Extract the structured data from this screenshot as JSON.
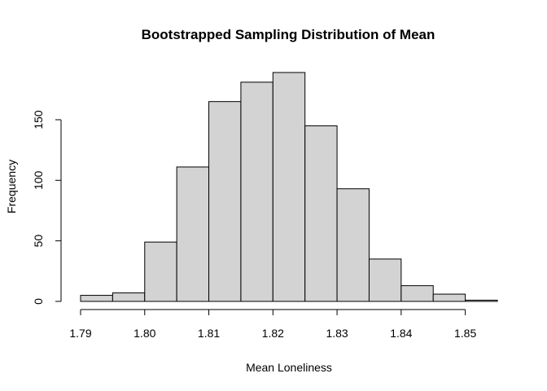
{
  "chart_data": {
    "type": "bar",
    "title": "Bootstrapped Sampling Distribution of Mean",
    "xlabel": "Mean Loneliness",
    "ylabel": "Frequency",
    "bins": [
      {
        "x0": 1.79,
        "x1": 1.795,
        "count": 5
      },
      {
        "x0": 1.795,
        "x1": 1.8,
        "count": 7
      },
      {
        "x0": 1.8,
        "x1": 1.805,
        "count": 49
      },
      {
        "x0": 1.805,
        "x1": 1.81,
        "count": 111
      },
      {
        "x0": 1.81,
        "x1": 1.815,
        "count": 165
      },
      {
        "x0": 1.815,
        "x1": 1.82,
        "count": 181
      },
      {
        "x0": 1.82,
        "x1": 1.825,
        "count": 189
      },
      {
        "x0": 1.825,
        "x1": 1.83,
        "count": 145
      },
      {
        "x0": 1.83,
        "x1": 1.835,
        "count": 93
      },
      {
        "x0": 1.835,
        "x1": 1.84,
        "count": 35
      },
      {
        "x0": 1.84,
        "x1": 1.845,
        "count": 13
      },
      {
        "x0": 1.845,
        "x1": 1.85,
        "count": 6
      },
      {
        "x0": 1.85,
        "x1": 1.855,
        "count": 1
      }
    ],
    "xticks": [
      {
        "value": 1.79,
        "label": "1.79"
      },
      {
        "value": 1.8,
        "label": "1.80"
      },
      {
        "value": 1.81,
        "label": "1.81"
      },
      {
        "value": 1.82,
        "label": "1.82"
      },
      {
        "value": 1.83,
        "label": "1.83"
      },
      {
        "value": 1.84,
        "label": "1.84"
      },
      {
        "value": 1.85,
        "label": "1.85"
      }
    ],
    "yticks": [
      {
        "value": 0,
        "label": "0"
      },
      {
        "value": 50,
        "label": "50"
      },
      {
        "value": 100,
        "label": "100"
      },
      {
        "value": 150,
        "label": "150"
      }
    ],
    "xlim": [
      1.79,
      1.855
    ],
    "ylim": [
      0,
      189
    ],
    "grid": false,
    "colors": {
      "bar_fill": "#d3d3d3",
      "bar_stroke": "#000000",
      "axis": "#000000"
    }
  }
}
